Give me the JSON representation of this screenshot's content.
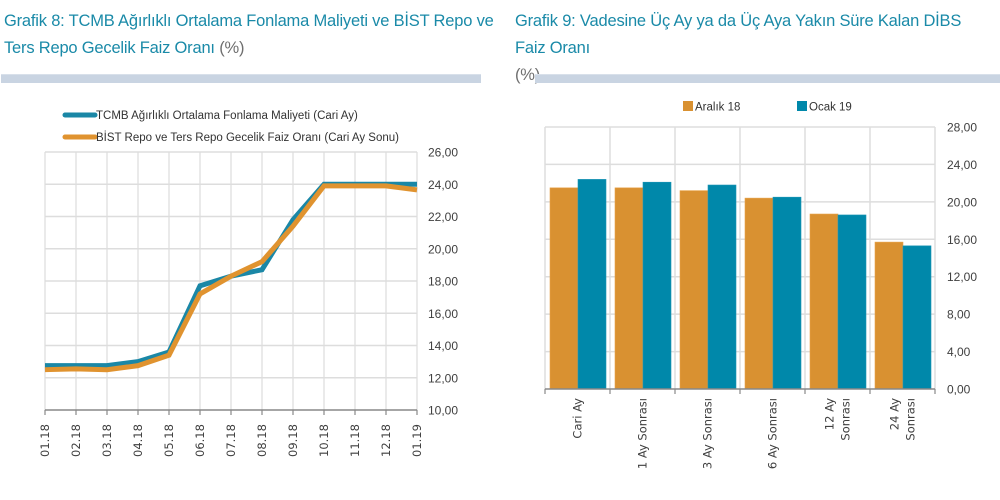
{
  "chart_data": [
    {
      "type": "line",
      "title": "Grafik 8:  TCMB Ağırlıklı Ortalama Fonlama Maliyeti  ve BİST Repo ve Ters Repo Gecelik Faiz Oranı",
      "title_unit": "(%)",
      "x": [
        "01.18",
        "02.18",
        "03.18",
        "04.18",
        "05.18",
        "06.18",
        "07.18",
        "08.18",
        "09.18",
        "10.18",
        "11.18",
        "12.18",
        "01.19"
      ],
      "series": [
        {
          "name": "TCMB Ağırlıklı Ortalama Fonlama Maliyeti (Cari Ay)",
          "color": "#1a87a6",
          "values": [
            12.75,
            12.75,
            12.75,
            13.0,
            13.6,
            17.7,
            18.3,
            18.7,
            21.8,
            24.0,
            24.0,
            24.0,
            24.0
          ]
        },
        {
          "name": "BİST Repo ve Ters Repo Gecelik Faiz Oranı (Cari Ay Sonu)",
          "color": "#e0932f",
          "values": [
            12.5,
            12.55,
            12.5,
            12.75,
            13.4,
            17.2,
            18.3,
            19.2,
            21.4,
            23.9,
            23.9,
            23.9,
            23.65
          ]
        }
      ],
      "yticks": [
        "26,00",
        "24,00",
        "22,00",
        "20,00",
        "18,00",
        "16,00",
        "14,00",
        "12,00",
        "10,00"
      ],
      "ylim": [
        10,
        26
      ],
      "xlabel": "",
      "ylabel": "",
      "grid": true,
      "legend": "top-left",
      "yaxis_side": "right"
    },
    {
      "type": "bar",
      "title": "Grafik 9: Vadesine Üç Ay ya da Üç Aya Yakın Süre Kalan DİBS Faiz Oranı",
      "title_unit": "(%)",
      "categories": [
        "Cari Ay",
        "1 Ay Sonrası",
        "3 Ay Sonrası",
        "6 Ay Sonrası",
        "12 Ay Sonrası",
        "24 Ay Sonrası"
      ],
      "category_lines": [
        [
          "Cari Ay"
        ],
        [
          "1 Ay Sonrası"
        ],
        [
          "3 Ay Sonrası"
        ],
        [
          "6 Ay Sonrası"
        ],
        [
          "12 Ay",
          "Sonrası"
        ],
        [
          "24 Ay",
          "Sonrası"
        ]
      ],
      "series": [
        {
          "name": "Aralık 18",
          "color": "#d99131",
          "values": [
            21.5,
            21.5,
            21.2,
            20.4,
            18.7,
            15.7
          ]
        },
        {
          "name": "Ocak 19",
          "color": "#0088aa",
          "values": [
            22.4,
            22.1,
            21.8,
            20.5,
            18.6,
            15.3
          ]
        }
      ],
      "yticks": [
        "28,00",
        "24,00",
        "20,00",
        "16,00",
        "12,00",
        "8,00",
        "4,00",
        "0,00"
      ],
      "ylim": [
        0,
        28
      ],
      "xlabel": "",
      "ylabel": "",
      "grid": true,
      "legend": "top-center",
      "yaxis_side": "right"
    }
  ]
}
